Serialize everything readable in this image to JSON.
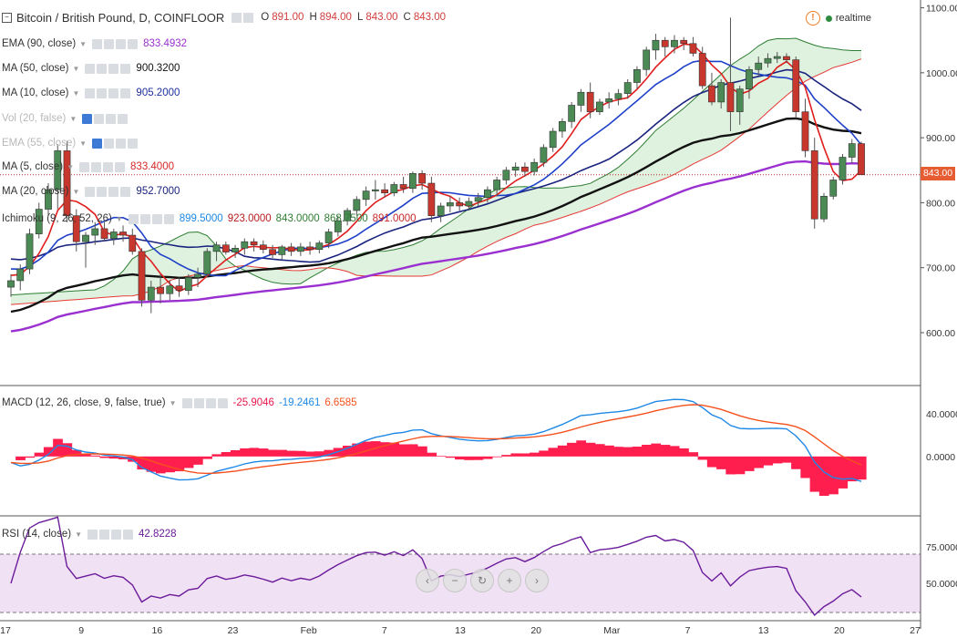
{
  "header": {
    "title": "Bitcoin / British Pound, D, COINFLOOR",
    "ohlc": [
      {
        "k": "O",
        "v": "891.00"
      },
      {
        "k": "H",
        "v": "894.00"
      },
      {
        "k": "L",
        "v": "843.00"
      },
      {
        "k": "C",
        "v": "843.00"
      }
    ],
    "realtime": "realtime"
  },
  "indicators": [
    {
      "name": "EMA (90, close)",
      "value": "833.4932",
      "color": "#9b30d0",
      "faded": false,
      "blue": false
    },
    {
      "name": "MA (50, close)",
      "value": "900.3200",
      "color": "#111111",
      "faded": false,
      "blue": false
    },
    {
      "name": "MA (10, close)",
      "value": "905.2000",
      "color": "#1f2f9e",
      "faded": false,
      "blue": false
    },
    {
      "name": "Vol (20, false)",
      "value": "",
      "color": "#999999",
      "faded": true,
      "blue": true
    },
    {
      "name": "EMA (55, close)",
      "value": "",
      "color": "#999999",
      "faded": true,
      "blue": true
    },
    {
      "name": "MA (5, close)",
      "value": "833.4000",
      "color": "#d62728",
      "faded": false,
      "blue": false
    },
    {
      "name": "MA (20, close)",
      "value": "952.7000",
      "color": "#1a237e",
      "faded": false,
      "blue": false
    }
  ],
  "ichimoku": {
    "name": "Ichimoku (9, 26, 52, 26)",
    "values": [
      {
        "v": "899.5000",
        "color": "#1e88e5"
      },
      {
        "v": "923.0000",
        "color": "#b71c1c"
      },
      {
        "v": "843.0000",
        "color": "#2e7d32"
      },
      {
        "v": "868.7500",
        "color": "#2e7d32"
      },
      {
        "v": "891.0000",
        "color": "#c62828"
      }
    ]
  },
  "macd": {
    "name": "MACD (12, 26, close, 9, false, true)",
    "values": [
      {
        "v": "-25.9046",
        "color": "#e8174d"
      },
      {
        "v": "-19.2461",
        "color": "#1e88e5"
      },
      {
        "v": "6.6585",
        "color": "#f4511e"
      }
    ]
  },
  "rsi": {
    "name": "RSI (14, close)",
    "value": "42.8228",
    "color": "#6a1b9a"
  },
  "price_axis": [
    "1100.00",
    "1000.00",
    "900.00",
    "800.00",
    "700.00",
    "600.00"
  ],
  "macd_axis": [
    "40.0000",
    "0.0000"
  ],
  "rsi_axis": [
    "75.0000",
    "50.0000"
  ],
  "last_price": "843.00",
  "x_axis": [
    "17",
    "9",
    "16",
    "23",
    "Feb",
    "7",
    "13",
    "20",
    "Mar",
    "7",
    "13",
    "20",
    "27"
  ],
  "nav_buttons": [
    "‹",
    "−",
    "↻",
    "+",
    "›"
  ],
  "chart_data": {
    "type": "candlestick",
    "price_range": [
      520,
      1105
    ],
    "candles": [
      [
        670,
        690,
        655,
        680
      ],
      [
        680,
        705,
        665,
        698
      ],
      [
        698,
        760,
        690,
        752
      ],
      [
        752,
        800,
        745,
        790
      ],
      [
        790,
        830,
        780,
        820
      ],
      [
        820,
        890,
        790,
        880
      ],
      [
        880,
        895,
        770,
        780
      ],
      [
        780,
        790,
        725,
        740
      ],
      [
        740,
        755,
        700,
        750
      ],
      [
        750,
        770,
        735,
        760
      ],
      [
        760,
        770,
        740,
        745
      ],
      [
        745,
        760,
        735,
        755
      ],
      [
        755,
        765,
        740,
        750
      ],
      [
        750,
        760,
        720,
        725
      ],
      [
        725,
        730,
        640,
        650
      ],
      [
        650,
        680,
        630,
        670
      ],
      [
        670,
        690,
        645,
        660
      ],
      [
        660,
        680,
        650,
        672
      ],
      [
        672,
        685,
        655,
        665
      ],
      [
        665,
        690,
        658,
        685
      ],
      [
        685,
        700,
        670,
        690
      ],
      [
        690,
        730,
        685,
        725
      ],
      [
        725,
        740,
        710,
        735
      ],
      [
        735,
        740,
        720,
        724
      ],
      [
        724,
        735,
        715,
        730
      ],
      [
        730,
        745,
        720,
        740
      ],
      [
        740,
        745,
        725,
        735
      ],
      [
        735,
        742,
        722,
        728
      ],
      [
        728,
        735,
        715,
        720
      ],
      [
        720,
        735,
        712,
        732
      ],
      [
        732,
        738,
        718,
        725
      ],
      [
        725,
        738,
        718,
        732
      ],
      [
        732,
        740,
        720,
        728
      ],
      [
        728,
        742,
        722,
        738
      ],
      [
        738,
        760,
        730,
        755
      ],
      [
        755,
        780,
        748,
        772
      ],
      [
        772,
        792,
        765,
        788
      ],
      [
        788,
        810,
        780,
        805
      ],
      [
        805,
        825,
        795,
        818
      ],
      [
        818,
        835,
        805,
        820
      ],
      [
        820,
        830,
        808,
        815
      ],
      [
        815,
        832,
        810,
        828
      ],
      [
        828,
        840,
        815,
        822
      ],
      [
        822,
        848,
        815,
        845
      ],
      [
        845,
        850,
        820,
        830
      ],
      [
        830,
        840,
        770,
        780
      ],
      [
        780,
        800,
        770,
        795
      ],
      [
        795,
        810,
        785,
        800
      ],
      [
        800,
        808,
        788,
        795
      ],
      [
        795,
        808,
        788,
        802
      ],
      [
        802,
        815,
        795,
        808
      ],
      [
        808,
        825,
        800,
        820
      ],
      [
        820,
        840,
        810,
        835
      ],
      [
        835,
        855,
        828,
        850
      ],
      [
        850,
        862,
        840,
        855
      ],
      [
        855,
        862,
        840,
        848
      ],
      [
        848,
        868,
        842,
        862
      ],
      [
        862,
        890,
        855,
        885
      ],
      [
        885,
        915,
        878,
        910
      ],
      [
        910,
        930,
        900,
        925
      ],
      [
        925,
        955,
        915,
        950
      ],
      [
        950,
        975,
        940,
        970
      ],
      [
        970,
        985,
        930,
        940
      ],
      [
        940,
        960,
        935,
        955
      ],
      [
        955,
        970,
        945,
        960
      ],
      [
        960,
        975,
        950,
        968
      ],
      [
        968,
        990,
        960,
        985
      ],
      [
        985,
        1010,
        975,
        1005
      ],
      [
        1005,
        1040,
        995,
        1035
      ],
      [
        1035,
        1060,
        1020,
        1050
      ],
      [
        1050,
        1055,
        1025,
        1040
      ],
      [
        1040,
        1058,
        1030,
        1050
      ],
      [
        1050,
        1055,
        1035,
        1045
      ],
      [
        1045,
        1055,
        1025,
        1030
      ],
      [
        1030,
        1040,
        975,
        980
      ],
      [
        980,
        1000,
        950,
        955
      ],
      [
        955,
        990,
        945,
        985
      ],
      [
        985,
        1085,
        910,
        940
      ],
      [
        940,
        980,
        920,
        975
      ],
      [
        975,
        1010,
        960,
        1005
      ],
      [
        1005,
        1025,
        995,
        1015
      ],
      [
        1015,
        1030,
        1008,
        1022
      ],
      [
        1022,
        1032,
        1015,
        1025
      ],
      [
        1025,
        1030,
        1015,
        1020
      ],
      [
        1020,
        1025,
        930,
        940
      ],
      [
        940,
        960,
        870,
        880
      ],
      [
        880,
        900,
        760,
        775
      ],
      [
        775,
        815,
        770,
        810
      ],
      [
        810,
        840,
        805,
        835
      ],
      [
        835,
        875,
        828,
        870
      ],
      [
        870,
        898,
        860,
        891
      ],
      [
        891,
        894,
        843,
        843
      ]
    ],
    "macd_range": [
      -55,
      65
    ],
    "rsi_range": [
      25,
      95
    ],
    "rsi_levels": [
      70,
      30
    ]
  }
}
